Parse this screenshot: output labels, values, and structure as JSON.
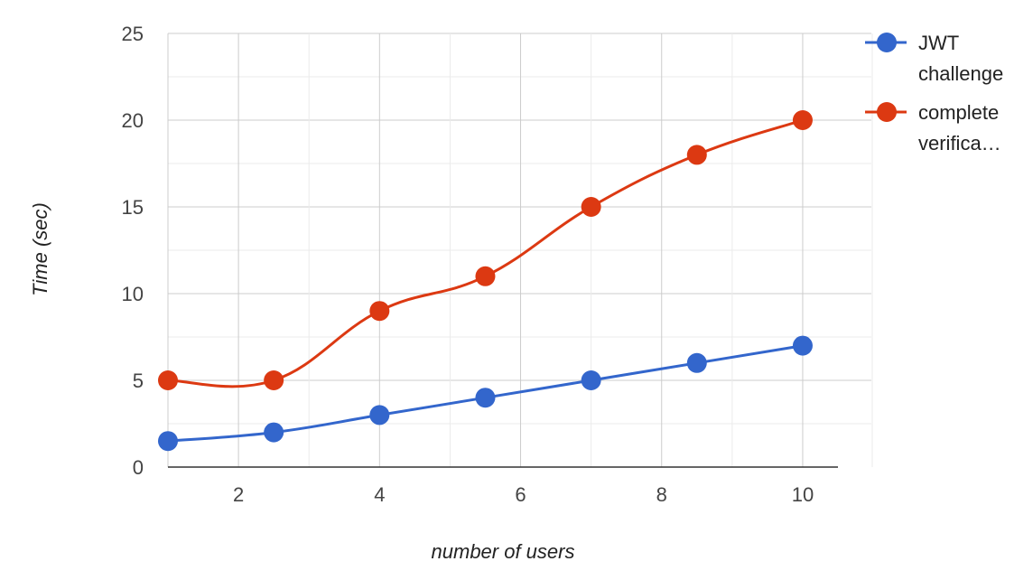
{
  "chart_data": {
    "type": "line",
    "title": "",
    "xlabel": "number of users",
    "ylabel": "Time (sec)",
    "xlim": [
      1,
      10.5
    ],
    "ylim": [
      0,
      25
    ],
    "x_ticks": [
      2,
      4,
      6,
      8,
      10
    ],
    "y_ticks": [
      0,
      5,
      10,
      15,
      20,
      25
    ],
    "grid": true,
    "legend_position": "right",
    "series": [
      {
        "name": "JWT challenge",
        "legend_lines": [
          "JWT",
          "challenge"
        ],
        "color": "#3366cc",
        "x": [
          1,
          2.5,
          4,
          5.5,
          7,
          8.5,
          10
        ],
        "y": [
          1.5,
          2,
          3,
          4,
          5,
          6,
          7
        ]
      },
      {
        "name": "complete verifica…",
        "legend_lines": [
          "complete",
          "verifica…"
        ],
        "color": "#dc3912",
        "x": [
          1,
          2.5,
          4,
          5.5,
          7,
          8.5,
          10
        ],
        "y": [
          5,
          5,
          9,
          11,
          15,
          18,
          20
        ]
      }
    ]
  }
}
